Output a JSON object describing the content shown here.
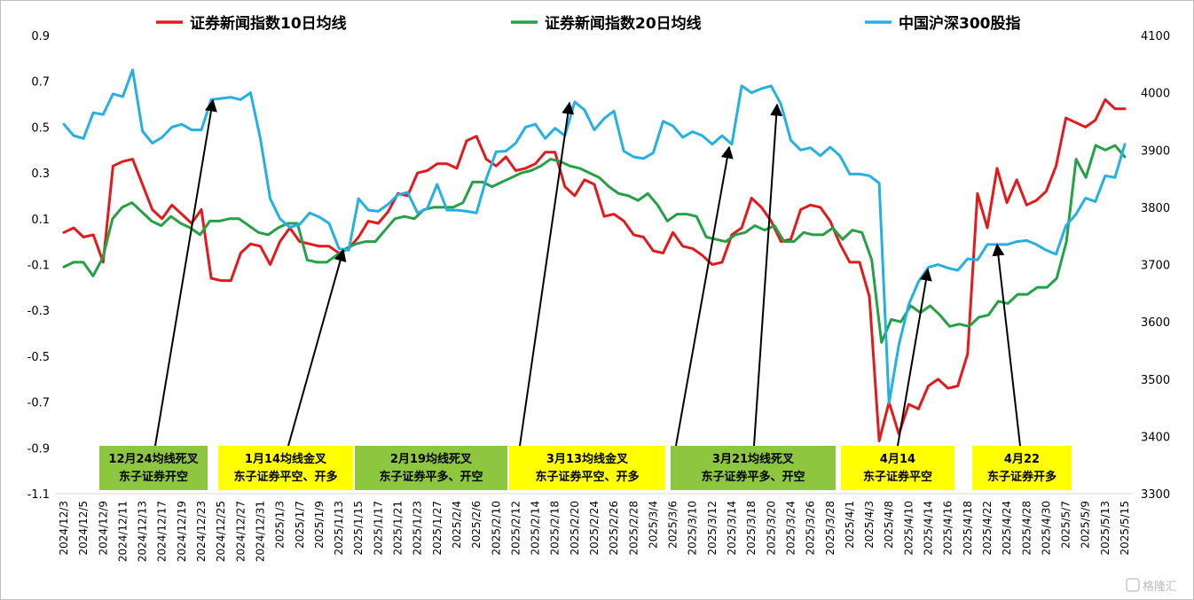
{
  "chart_data": {
    "type": "line",
    "title": "",
    "legend_position": "top",
    "grid": false,
    "y_left": {
      "min": -1.1,
      "max": 0.9,
      "ticks": [
        -1.1,
        -0.9,
        -0.7,
        -0.5,
        -0.3,
        -0.1,
        0.1,
        0.3,
        0.5,
        0.7,
        0.9
      ],
      "tick_labels": [
        "-1.1",
        "-0.9",
        "-0.7",
        "-0.5",
        "-0.3",
        "-0.1",
        "0.1",
        "0.3",
        "0.5",
        "0.7",
        "0.9"
      ]
    },
    "y_right": {
      "min": 3300,
      "max": 4100,
      "ticks": [
        3300,
        3400,
        3500,
        3600,
        3700,
        3800,
        3900,
        4000,
        4100
      ],
      "tick_labels": [
        "3300",
        "3400",
        "3500",
        "3600",
        "3700",
        "3800",
        "3900",
        "4000",
        "4100"
      ]
    },
    "x_tick_labels": [
      "2024/12/3",
      "2024/12/5",
      "2024/12/9",
      "2024/12/11",
      "2024/12/13",
      "2024/12/17",
      "2024/12/19",
      "2024/12/23",
      "2024/12/25",
      "2024/12/27",
      "2024/12/31",
      "2025/1/3",
      "2025/1/7",
      "2025/1/9",
      "2025/1/13",
      "2025/1/15",
      "2025/1/17",
      "2025/1/21",
      "2025/1/23",
      "2025/1/27",
      "2025/2/4",
      "2025/2/6",
      "2025/2/10",
      "2025/2/12",
      "2025/2/14",
      "2025/2/18",
      "2025/2/20",
      "2025/2/24",
      "2025/2/26",
      "2025/2/28",
      "2025/3/4",
      "2025/3/6",
      "2025/3/10",
      "2025/3/12",
      "2025/3/14",
      "2025/3/18",
      "2025/3/20",
      "2025/3/24",
      "2025/3/26",
      "2025/3/28",
      "2025/4/1",
      "2025/4/3",
      "2025/4/8",
      "2025/4/10",
      "2025/4/14",
      "2025/4/16",
      "2025/4/18",
      "2025/4/22",
      "2025/4/24",
      "2025/4/28",
      "2025/4/30",
      "2025/5/7",
      "2025/5/9",
      "2025/5/13",
      "2025/5/15"
    ],
    "series": [
      {
        "name": "证券新闻指数10日均线",
        "axis": "left",
        "color": "#e31a1c",
        "values": [
          0.04,
          0.06,
          0.02,
          0.03,
          -0.09,
          0.33,
          0.35,
          0.36,
          0.25,
          0.14,
          0.1,
          0.16,
          0.12,
          0.08,
          0.14,
          -0.16,
          -0.17,
          -0.17,
          -0.05,
          -0.01,
          -0.02,
          -0.1,
          0.0,
          0.06,
          0.0,
          -0.01,
          -0.02,
          -0.02,
          -0.05,
          -0.03,
          0.02,
          0.09,
          0.08,
          0.13,
          0.21,
          0.2,
          0.3,
          0.31,
          0.34,
          0.34,
          0.32,
          0.44,
          0.46,
          0.36,
          0.33,
          0.37,
          0.31,
          0.32,
          0.34,
          0.39,
          0.39,
          0.24,
          0.2,
          0.27,
          0.25,
          0.11,
          0.12,
          0.09,
          0.03,
          0.02,
          -0.04,
          -0.05,
          0.04,
          -0.02,
          -0.03,
          -0.06,
          -0.1,
          -0.09,
          0.03,
          0.06,
          0.19,
          0.15,
          0.09,
          0.0,
          0.01,
          0.14,
          0.16,
          0.15,
          0.09,
          -0.01,
          -0.09,
          -0.09,
          -0.24,
          -0.87,
          -0.7,
          -0.84,
          -0.71,
          -0.73,
          -0.63,
          -0.6,
          -0.64,
          -0.63,
          -0.49,
          0.21,
          0.06,
          0.32,
          0.17,
          0.27,
          0.16,
          0.18,
          0.22,
          0.33,
          0.54,
          0.52,
          0.5,
          0.53,
          0.62,
          0.58,
          0.58
        ]
      },
      {
        "name": "证券新闻指数20日均线",
        "axis": "left",
        "color": "#22a145",
        "values": [
          -0.11,
          -0.09,
          -0.09,
          -0.15,
          -0.07,
          0.1,
          0.15,
          0.17,
          0.13,
          0.09,
          0.07,
          0.11,
          0.08,
          0.06,
          0.03,
          0.09,
          0.09,
          0.1,
          0.1,
          0.07,
          0.04,
          0.03,
          0.06,
          0.08,
          0.08,
          -0.08,
          -0.09,
          -0.09,
          -0.06,
          -0.03,
          -0.01,
          0.0,
          0.0,
          0.05,
          0.1,
          0.11,
          0.1,
          0.14,
          0.15,
          0.15,
          0.15,
          0.17,
          0.26,
          0.26,
          0.24,
          0.26,
          0.28,
          0.3,
          0.31,
          0.33,
          0.36,
          0.35,
          0.33,
          0.32,
          0.3,
          0.28,
          0.24,
          0.21,
          0.2,
          0.18,
          0.21,
          0.16,
          0.09,
          0.12,
          0.12,
          0.11,
          0.02,
          0.01,
          0.0,
          0.03,
          0.04,
          0.07,
          0.05,
          0.07,
          0.0,
          0.0,
          0.04,
          0.03,
          0.03,
          0.06,
          0.01,
          0.05,
          0.04,
          -0.08,
          -0.44,
          -0.34,
          -0.35,
          -0.28,
          -0.31,
          -0.28,
          -0.32,
          -0.37,
          -0.36,
          -0.37,
          -0.33,
          -0.32,
          -0.26,
          -0.27,
          -0.23,
          -0.23,
          -0.2,
          -0.2,
          -0.16,
          0.0,
          0.36,
          0.28,
          0.42,
          0.4,
          0.42,
          0.37
        ]
      },
      {
        "name": "中国沪深300股指",
        "axis": "right",
        "color": "#25b0e4",
        "values": [
          3945,
          3925,
          3920,
          3965,
          3962,
          3998,
          3993,
          4040,
          3933,
          3912,
          3922,
          3940,
          3945,
          3935,
          3935,
          3988,
          3990,
          3992,
          3988,
          4000,
          3920,
          3815,
          3780,
          3765,
          3770,
          3790,
          3783,
          3772,
          3728,
          3725,
          3815,
          3795,
          3793,
          3805,
          3822,
          3826,
          3790,
          3798,
          3840,
          3795,
          3795,
          3793,
          3790,
          3850,
          3897,
          3898,
          3912,
          3940,
          3945,
          3920,
          3938,
          3925,
          3984,
          3970,
          3935,
          3955,
          3968,
          3898,
          3888,
          3885,
          3895,
          3950,
          3942,
          3922,
          3932,
          3925,
          3910,
          3925,
          3910,
          4012,
          4000,
          4007,
          4012,
          3980,
          3917,
          3900,
          3904,
          3890,
          3905,
          3890,
          3858,
          3858,
          3855,
          3842,
          3458,
          3560,
          3630,
          3670,
          3695,
          3700,
          3694,
          3690,
          3710,
          3708,
          3735,
          3735,
          3735,
          3740,
          3742,
          3735,
          3725,
          3718,
          3768,
          3787,
          3816,
          3810,
          3855,
          3852,
          3910
        ]
      }
    ],
    "annotations": [
      {
        "lines": [
          "12月24均线死叉",
          "东子证券开空"
        ],
        "bg": "#8dc63f"
      },
      {
        "lines": [
          "1月14均线金叉",
          "东子证券平空、开多"
        ],
        "bg": "#ffff00"
      },
      {
        "lines": [
          "2月19均线死叉",
          "东子证券平多、开空"
        ],
        "bg": "#8dc63f"
      },
      {
        "lines": [
          "3月13均线金叉",
          "东子证券平空、开多"
        ],
        "bg": "#ffff00"
      },
      {
        "lines": [
          "3月21均线死叉",
          "东子证券平多、开空"
        ],
        "bg": "#8dc63f"
      },
      {
        "lines": [
          "4月14",
          "东子证券平空"
        ],
        "bg": "#ffff00"
      },
      {
        "lines": [
          "4月22",
          "东子证券开多"
        ],
        "bg": "#ffff00"
      }
    ],
    "watermark": "格隆汇"
  }
}
